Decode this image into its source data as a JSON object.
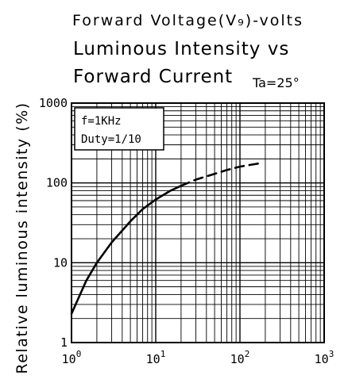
{
  "chart_data": {
    "type": "line",
    "header_line": "Forward Voltage(V₉)-volts",
    "title_line1": "Luminous Intensity vs",
    "title_line2": "Forward Current",
    "condition": "Ta=25°",
    "ylabel": "Relative luminous intensity (%)",
    "xlabel": "",
    "legend_box": [
      "f=1KHz",
      "Duty=1/10"
    ],
    "x_scale": "log",
    "y_scale": "log",
    "xlim": [
      1,
      1000
    ],
    "ylim": [
      1,
      1000
    ],
    "x_ticks": [
      {
        "base": "10",
        "exp": "0"
      },
      {
        "base": "10",
        "exp": "1"
      },
      {
        "base": "10",
        "exp": "2"
      },
      {
        "base": "10",
        "exp": "3"
      }
    ],
    "y_ticks": [
      "1",
      "10",
      "100",
      "1000"
    ],
    "grid": true,
    "series": [
      {
        "segments": [
          {
            "style": "solid",
            "x": [
              1,
              1.5,
              2,
              3,
              5,
              7,
              10,
              15,
              20
            ],
            "y": [
              2.3,
              6,
              10,
              18,
              33,
              47,
              62,
              80,
              92
            ]
          },
          {
            "style": "dashed",
            "x": [
              20,
              30,
              50,
              70,
              100,
              150,
              180
            ],
            "y": [
              92,
              110,
              130,
              145,
              160,
              172,
              178
            ]
          }
        ]
      }
    ]
  }
}
